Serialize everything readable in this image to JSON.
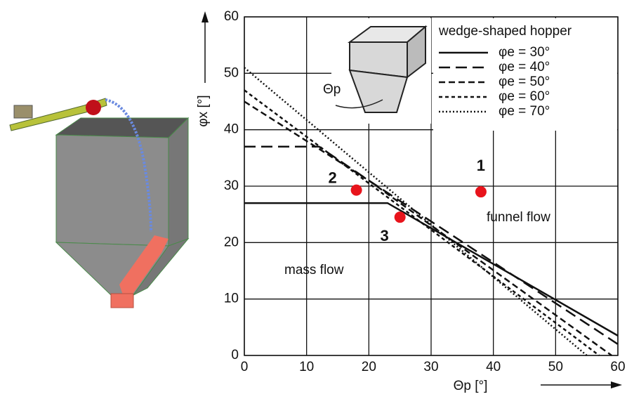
{
  "chart_data": {
    "type": "line",
    "x_label": "Θp [°]",
    "y_label": "φx [°]",
    "xlim": [
      0,
      60
    ],
    "ylim": [
      0,
      60
    ],
    "xticks": [
      0,
      10,
      20,
      30,
      40,
      50,
      60
    ],
    "yticks": [
      0,
      10,
      20,
      30,
      40,
      50,
      60
    ],
    "grid": true,
    "legend_title": "wedge-shaped hopper",
    "inset_label": "Θp",
    "series": [
      {
        "name": "φe = 30°",
        "color": "#111111",
        "line_style": "solid",
        "x": [
          0,
          23,
          60
        ],
        "values": [
          27,
          27,
          3.5
        ]
      },
      {
        "name": "φe = 40°",
        "color": "#111111",
        "line_style": "long-dash",
        "x": [
          0,
          12,
          20,
          60
        ],
        "values": [
          37,
          37,
          31,
          2
        ]
      },
      {
        "name": "φe = 50°",
        "color": "#111111",
        "line_style": "dash",
        "x": [
          0,
          20,
          59
        ],
        "values": [
          45,
          31,
          0
        ]
      },
      {
        "name": "φe = 60°",
        "color": "#111111",
        "line_style": "short-dash",
        "x": [
          0,
          57
        ],
        "values": [
          47,
          0
        ]
      },
      {
        "name": "φe = 70°",
        "color": "#111111",
        "line_style": "dotted",
        "x": [
          0,
          55
        ],
        "values": [
          51,
          0
        ]
      }
    ],
    "points": {
      "color": "#e8141c",
      "labels": [
        "1",
        "2",
        "3"
      ],
      "x": [
        38,
        18,
        25
      ],
      "values": [
        29,
        29.3,
        24.5
      ]
    },
    "annotations": [
      "funnel flow",
      "mass flow"
    ]
  }
}
